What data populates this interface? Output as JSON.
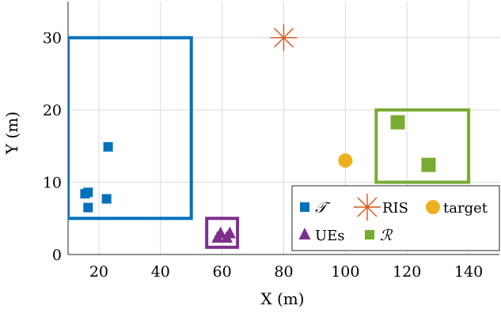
{
  "chart_data": {
    "type": "scatter",
    "xlabel": "X (m)",
    "ylabel": "Y (m)",
    "xlim": [
      10,
      150
    ],
    "ylim": [
      0,
      35
    ],
    "xticks": [
      20,
      40,
      60,
      80,
      100,
      120,
      140
    ],
    "yticks": [
      0,
      10,
      20,
      30
    ],
    "grid": true,
    "legend_position": "bottom-right",
    "colors": {
      "T": "#0072BD",
      "RIS": "#D95319",
      "target": "#EDB120",
      "UEs": "#7E2F8E",
      "R": "#77AC30"
    },
    "series": [
      {
        "key": "T",
        "name": "𝒯",
        "marker": "square",
        "points": [
          [
            15.5,
            8.4
          ],
          [
            16.5,
            8.6
          ],
          [
            16.5,
            6.5
          ],
          [
            22.5,
            7.7
          ],
          [
            23,
            14.9
          ]
        ]
      },
      {
        "key": "RIS",
        "name": "RIS",
        "marker": "star",
        "points": [
          [
            80,
            30
          ]
        ]
      },
      {
        "key": "target",
        "name": "target",
        "marker": "circle",
        "points": [
          [
            100,
            13
          ]
        ]
      },
      {
        "key": "UEs",
        "name": "UEs",
        "marker": "triangle",
        "points": [
          [
            58.5,
            2.3
          ],
          [
            59.5,
            2.9
          ],
          [
            61.5,
            2.3
          ],
          [
            62.5,
            2.9
          ]
        ]
      },
      {
        "key": "R",
        "name": "ℛ",
        "marker": "square-large",
        "points": [
          [
            117,
            18.3
          ],
          [
            127,
            12.4
          ]
        ]
      }
    ],
    "regions": [
      {
        "key": "T",
        "x": [
          10,
          50
        ],
        "y": [
          5,
          30
        ]
      },
      {
        "key": "UEs",
        "x": [
          55,
          65
        ],
        "y": [
          1,
          5
        ]
      },
      {
        "key": "R",
        "x": [
          110,
          140
        ],
        "y": [
          10,
          20
        ]
      }
    ],
    "legend": [
      [
        "T",
        "RIS",
        "target"
      ],
      [
        "UEs",
        "R"
      ]
    ]
  }
}
